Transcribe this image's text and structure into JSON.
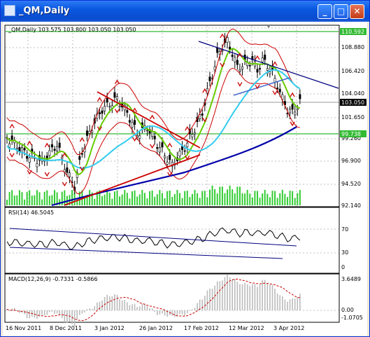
{
  "window": {
    "title": "_QM,Daily",
    "minimize_label": "_",
    "maximize_label": "□",
    "close_label": "✕"
  },
  "main_chart": {
    "info": "_QM,Daily  103.575 103.800 103.050 103.050",
    "price_labels": [
      "108.880",
      "106.420",
      "104.040",
      "101.650",
      "99.260",
      "96.900",
      "94.520",
      "92.140"
    ],
    "upper_level": "110.592",
    "current_price": "103.050",
    "lower_level": "99.738"
  },
  "rsi_panel": {
    "info": "RSI(14) 46.5045",
    "levels": [
      "70",
      "30",
      "0"
    ]
  },
  "macd_panel": {
    "info": "MACD(12,26,9) -0.7331 -0.5866",
    "levels": [
      "3.6489",
      "0.00",
      "-1.0705"
    ]
  },
  "time_axis": [
    "16 Nov 2011",
    "8 Dec 2011",
    "3 Jan 2012",
    "26 Jan 2012",
    "17 Feb 2012",
    "12 Mar 2012",
    "3 Apr 2012"
  ],
  "colors": {
    "grid": "#C0C0C0",
    "candles": "#000000",
    "volume": "#33CC33",
    "ma_fast": "#66CC00",
    "ma_mid": "#33CCEE",
    "ma_slow": "#0000AA",
    "bands": "#CC0000",
    "trendline": "#000080",
    "level_line": "#33BB33"
  }
}
